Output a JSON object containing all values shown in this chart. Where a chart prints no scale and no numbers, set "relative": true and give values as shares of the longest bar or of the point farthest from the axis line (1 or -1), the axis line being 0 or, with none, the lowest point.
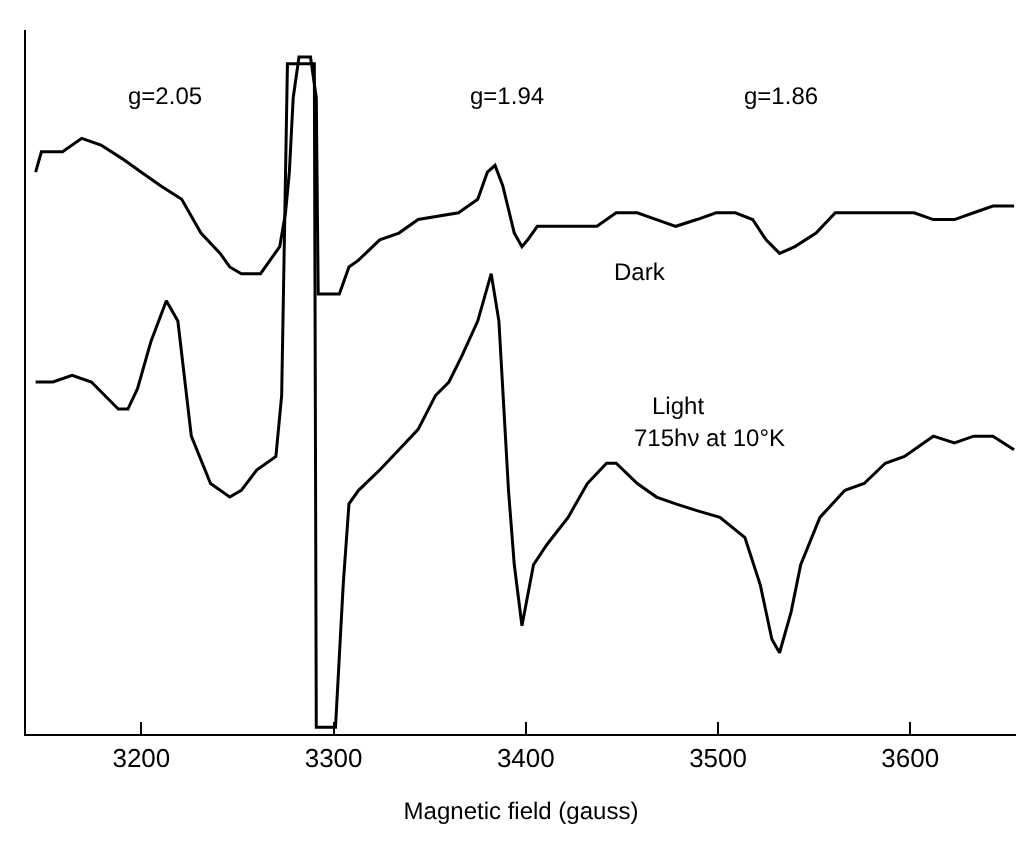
{
  "chart_data": {
    "type": "line",
    "relative": true,
    "xlabel": "Magnetic field (gauss)",
    "xlim": [
      3140,
      3655
    ],
    "xticks": [
      3200,
      3300,
      3400,
      3500,
      3600
    ],
    "legend": false,
    "marker": "none",
    "line_style": "solid",
    "series": [
      {
        "name": "Dark",
        "color": "#000000",
        "x": [
          3145,
          3148,
          3159,
          3169,
          3179,
          3190,
          3200,
          3210,
          3221,
          3231,
          3241,
          3246,
          3252,
          3262,
          3272,
          3275,
          3277,
          3279,
          3282,
          3288,
          3291,
          3292,
          3303,
          3308,
          3313,
          3324,
          3334,
          3344,
          3365,
          3375,
          3380,
          3384,
          3388,
          3394,
          3398,
          3401,
          3406,
          3417,
          3427,
          3437,
          3447,
          3458,
          3468,
          3478,
          3489,
          3499,
          3509,
          3518,
          3525,
          3532,
          3540,
          3551,
          3561,
          3571,
          3581,
          3592,
          3602,
          3612,
          3623,
          3633,
          3643,
          3648,
          3654
        ],
        "values": [
          0.83,
          0.86,
          0.86,
          0.88,
          0.87,
          0.85,
          0.83,
          0.81,
          0.79,
          0.74,
          0.71,
          0.69,
          0.68,
          0.68,
          0.72,
          0.77,
          0.83,
          0.94,
          1.0,
          1.0,
          0.94,
          0.65,
          0.65,
          0.69,
          0.7,
          0.73,
          0.74,
          0.76,
          0.77,
          0.79,
          0.83,
          0.84,
          0.81,
          0.74,
          0.72,
          0.73,
          0.75,
          0.75,
          0.75,
          0.75,
          0.77,
          0.77,
          0.76,
          0.75,
          0.76,
          0.77,
          0.77,
          0.76,
          0.73,
          0.71,
          0.72,
          0.74,
          0.77,
          0.77,
          0.77,
          0.77,
          0.77,
          0.76,
          0.76,
          0.77,
          0.78,
          0.78,
          0.78
        ]
      },
      {
        "name": "Light",
        "color": "#000000",
        "x": [
          3145,
          3154,
          3164,
          3174,
          3181,
          3188,
          3193,
          3198,
          3205,
          3213,
          3219,
          3226,
          3236,
          3246,
          3252,
          3260,
          3270,
          3273,
          3276,
          3290,
          3291,
          3301,
          3305,
          3308,
          3313,
          3324,
          3334,
          3344,
          3353,
          3360,
          3367,
          3375,
          3382,
          3386,
          3391,
          3394,
          3398,
          3404,
          3411,
          3422,
          3432,
          3442,
          3447,
          3458,
          3468,
          3478,
          3489,
          3501,
          3514,
          3522,
          3528,
          3532,
          3538,
          3543,
          3553,
          3566,
          3576,
          3587,
          3597,
          3612,
          3623,
          3633,
          3643,
          3654
        ],
        "values": [
          0.52,
          0.52,
          0.53,
          0.52,
          0.5,
          0.48,
          0.48,
          0.51,
          0.58,
          0.64,
          0.61,
          0.44,
          0.37,
          0.35,
          0.36,
          0.39,
          0.41,
          0.5,
          0.99,
          0.99,
          0.01,
          0.01,
          0.22,
          0.34,
          0.36,
          0.39,
          0.42,
          0.45,
          0.5,
          0.52,
          0.56,
          0.61,
          0.68,
          0.61,
          0.36,
          0.25,
          0.16,
          0.25,
          0.28,
          0.32,
          0.37,
          0.4,
          0.4,
          0.37,
          0.35,
          0.34,
          0.33,
          0.32,
          0.29,
          0.22,
          0.14,
          0.12,
          0.18,
          0.25,
          0.32,
          0.36,
          0.37,
          0.4,
          0.41,
          0.44,
          0.43,
          0.44,
          0.44,
          0.42
        ]
      }
    ],
    "annotations": [
      "g=2.05",
      "g=1.94",
      "g=1.86",
      "715hν at 10°K"
    ]
  }
}
